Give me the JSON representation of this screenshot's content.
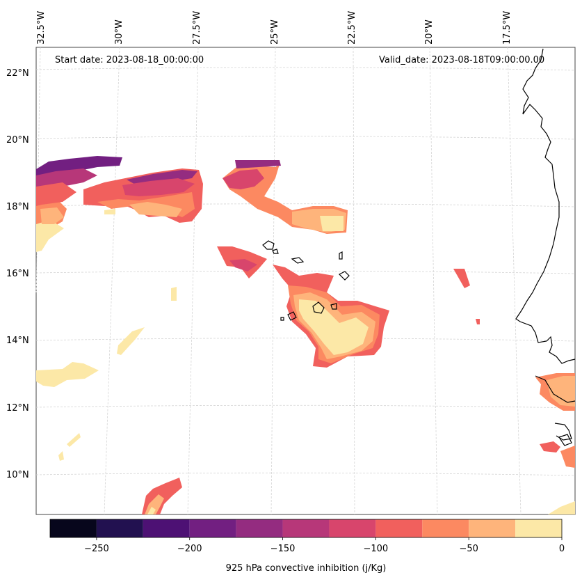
{
  "map": {
    "start_date_text": "Start date: 2023-08-18_00:00:00",
    "valid_date_text": "Valid_date: 2023-08-18T09:00:00.00",
    "lat_labels": [
      "22°N",
      "20°N",
      "18°N",
      "16°N",
      "14°N",
      "12°N",
      "10°N"
    ],
    "lon_labels": [
      "32.5°W",
      "30°W",
      "27.5°W",
      "25°W",
      "22.5°W",
      "20°W",
      "17.5°W"
    ],
    "variable": "925 hPa convective inhibition",
    "units": "j/Kg"
  },
  "colorbar": {
    "label": "925 hPa convective inhibition (j/Kg)",
    "levels": [
      -275,
      -250,
      -225,
      -200,
      -175,
      -150,
      -125,
      -100,
      -75,
      -50,
      -25,
      0
    ],
    "colors": [
      "#07061c",
      "#221150",
      "#4d1174",
      "#721f81",
      "#942c80",
      "#b73779",
      "#d8456c",
      "#f1605d",
      "#fc8961",
      "#feb47b",
      "#fce8a7"
    ],
    "tick_labels": [
      "−250",
      "−200",
      "−150",
      "−100",
      "−50",
      "0"
    ],
    "tick_values": [
      -250,
      -200,
      -150,
      -100,
      -50,
      0
    ]
  }
}
